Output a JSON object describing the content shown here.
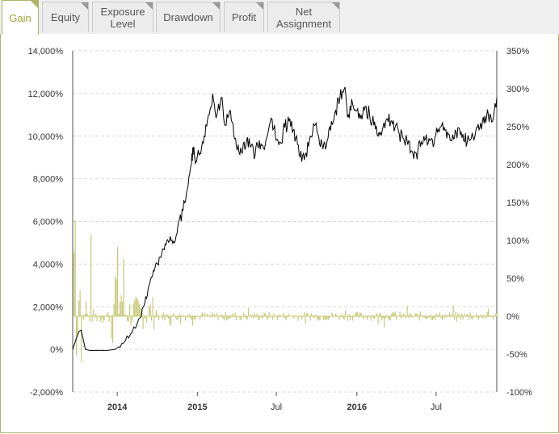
{
  "tabs": [
    {
      "label": "Gain",
      "active": true
    },
    {
      "label": "Equity",
      "active": false
    },
    {
      "label": "Exposure\nLevel",
      "active": false
    },
    {
      "label": "Drawdown",
      "active": false
    },
    {
      "label": "Profit",
      "active": false
    },
    {
      "label": "Net\nAssignment",
      "active": false
    }
  ],
  "colors": {
    "accent": "#9fa33b",
    "gain_line": "#000000",
    "bars": "#c8c878",
    "grid": "#d8d8d8"
  },
  "chart_data": {
    "type": "line",
    "left_axis": {
      "ticks": [
        "14,000%",
        "12,000%",
        "10,000%",
        "8,000%",
        "6,000%",
        "4,000%",
        "2,000%",
        "0%",
        "-2,000%"
      ],
      "ylim": [
        -2000,
        14000
      ]
    },
    "right_axis": {
      "ticks": [
        "350%",
        "300%",
        "250%",
        "200%",
        "150%",
        "100%",
        "50%",
        "0%",
        "-50%",
        "-100%"
      ],
      "ylim": [
        -100,
        350
      ]
    },
    "x_ticks": [
      {
        "label": "2014",
        "bold": true,
        "t": 0.105
      },
      {
        "label": "2015",
        "bold": true,
        "t": 0.294
      },
      {
        "label": "Jul",
        "bold": false,
        "t": 0.48
      },
      {
        "label": "2016",
        "bold": true,
        "t": 0.67
      },
      {
        "label": "Jul",
        "bold": false,
        "t": 0.857
      }
    ],
    "grid": true,
    "series": [
      {
        "axis": "left",
        "style": "line",
        "points": [
          [
            0.0,
            0
          ],
          [
            0.01,
            600
          ],
          [
            0.015,
            850
          ],
          [
            0.02,
            900
          ],
          [
            0.03,
            0
          ],
          [
            0.04,
            -50
          ],
          [
            0.06,
            -50
          ],
          [
            0.08,
            -50
          ],
          [
            0.1,
            0
          ],
          [
            0.12,
            300
          ],
          [
            0.14,
            800
          ],
          [
            0.16,
            1500
          ],
          [
            0.17,
            2200
          ],
          [
            0.18,
            3000
          ],
          [
            0.19,
            3700
          ],
          [
            0.2,
            4000
          ],
          [
            0.21,
            4500
          ],
          [
            0.22,
            4900
          ],
          [
            0.23,
            5300
          ],
          [
            0.24,
            5000
          ],
          [
            0.25,
            6000
          ],
          [
            0.26,
            6500
          ],
          [
            0.27,
            7500
          ],
          [
            0.28,
            8700
          ],
          [
            0.285,
            9500
          ],
          [
            0.29,
            8800
          ],
          [
            0.3,
            9200
          ],
          [
            0.31,
            10000
          ],
          [
            0.32,
            11000
          ],
          [
            0.33,
            12000
          ],
          [
            0.34,
            11000
          ],
          [
            0.35,
            11800
          ],
          [
            0.36,
            10500
          ],
          [
            0.37,
            11200
          ],
          [
            0.38,
            10000
          ],
          [
            0.39,
            9600
          ],
          [
            0.4,
            9200
          ],
          [
            0.41,
            9800
          ],
          [
            0.42,
            9500
          ],
          [
            0.43,
            9100
          ],
          [
            0.44,
            9800
          ],
          [
            0.45,
            9400
          ],
          [
            0.46,
            10100
          ],
          [
            0.47,
            10800
          ],
          [
            0.48,
            9800
          ],
          [
            0.49,
            9700
          ],
          [
            0.5,
            10400
          ],
          [
            0.51,
            10700
          ],
          [
            0.52,
            10300
          ],
          [
            0.53,
            9600
          ],
          [
            0.54,
            8800
          ],
          [
            0.55,
            9200
          ],
          [
            0.56,
            10000
          ],
          [
            0.57,
            10500
          ],
          [
            0.58,
            10000
          ],
          [
            0.59,
            9400
          ],
          [
            0.6,
            9800
          ],
          [
            0.61,
            10700
          ],
          [
            0.62,
            11200
          ],
          [
            0.63,
            11800
          ],
          [
            0.64,
            12200
          ],
          [
            0.65,
            11000
          ],
          [
            0.66,
            11500
          ],
          [
            0.67,
            11200
          ],
          [
            0.68,
            11000
          ],
          [
            0.69,
            11400
          ],
          [
            0.7,
            11000
          ],
          [
            0.71,
            10500
          ],
          [
            0.72,
            10000
          ],
          [
            0.73,
            10300
          ],
          [
            0.74,
            10800
          ],
          [
            0.75,
            10700
          ],
          [
            0.76,
            10400
          ],
          [
            0.77,
            10100
          ],
          [
            0.78,
            9900
          ],
          [
            0.79,
            9600
          ],
          [
            0.8,
            9300
          ],
          [
            0.81,
            9200
          ],
          [
            0.82,
            9500
          ],
          [
            0.83,
            9800
          ],
          [
            0.84,
            9900
          ],
          [
            0.85,
            9500
          ],
          [
            0.86,
            10200
          ],
          [
            0.87,
            10500
          ],
          [
            0.88,
            10300
          ],
          [
            0.89,
            9800
          ],
          [
            0.9,
            9900
          ],
          [
            0.91,
            10400
          ],
          [
            0.92,
            10100
          ],
          [
            0.93,
            9700
          ],
          [
            0.94,
            9900
          ],
          [
            0.95,
            10200
          ],
          [
            0.96,
            10400
          ],
          [
            0.97,
            10600
          ],
          [
            0.98,
            11000
          ],
          [
            0.99,
            10700
          ],
          [
            1.0,
            11800
          ]
        ]
      },
      {
        "axis": "right",
        "style": "bars",
        "name": ""
      }
    ]
  }
}
